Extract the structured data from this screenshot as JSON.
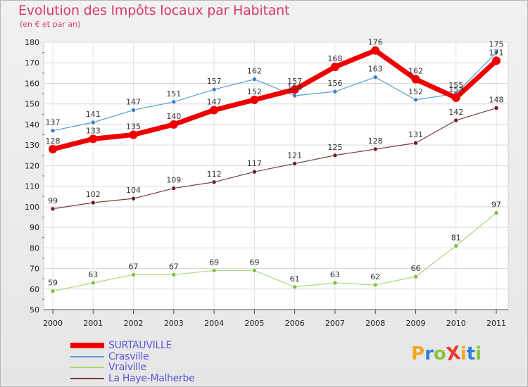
{
  "title": "Evolution des Impôts locaux par Habitant",
  "subtitle": "(en € et par an)",
  "logo": {
    "text": "ProXiti",
    "letters": [
      "P",
      "r",
      "o",
      "X",
      "i",
      "t",
      "i"
    ],
    "colors": [
      "#f5a623",
      "#2f7fd6",
      "#8ac43f",
      "#e43c2f",
      "#f5a623",
      "#2f7fd6",
      "#8ac43f"
    ]
  },
  "chart_data": {
    "type": "line",
    "title": "Evolution des Impôts locaux par Habitant",
    "subtitle": "(en € et par an)",
    "xlabel": "",
    "ylabel": "",
    "categories": [
      "2000",
      "2001",
      "2002",
      "2003",
      "2004",
      "2005",
      "2006",
      "2007",
      "2008",
      "2009",
      "2010",
      "2011"
    ],
    "ylim": [
      50,
      180
    ],
    "yticks": [
      "50",
      "60",
      "70",
      "80",
      "90",
      "100",
      "110",
      "120",
      "130",
      "140",
      "150",
      "160",
      "170",
      "180"
    ],
    "grid": true,
    "legend_position": "bottom-left",
    "series": [
      {
        "name": "SURTAUVILLE",
        "values": [
          128,
          133,
          135,
          140,
          147,
          152,
          157,
          168,
          176,
          162,
          153,
          171
        ],
        "labels": [
          "128",
          "133",
          "135",
          "140",
          "147",
          "152",
          "157",
          "168",
          "176",
          "162",
          "153",
          "171"
        ],
        "color": "#ee0000",
        "highlight": true
      },
      {
        "name": "Crasville",
        "values": [
          137,
          141,
          147,
          151,
          157,
          162,
          154,
          156,
          163,
          152,
          155,
          175
        ],
        "labels": [
          "137",
          "141",
          "147",
          "151",
          "157",
          "162",
          "154",
          "156",
          "163",
          "152",
          "155",
          "175"
        ],
        "color": "#5b9bd5",
        "point_color": "#3a7fc4",
        "highlight": false
      },
      {
        "name": "Vraiville",
        "values": [
          59,
          63,
          67,
          67,
          69,
          69,
          61,
          63,
          62,
          66,
          81,
          97
        ],
        "labels": [
          "59",
          "63",
          "67",
          "67",
          "69",
          "69",
          "61",
          "63",
          "62",
          "66",
          "81",
          "97"
        ],
        "color": "#a8d878",
        "point_color": "#7cc243",
        "highlight": false
      },
      {
        "name": "La Haye-Malherbe",
        "values": [
          99,
          102,
          104,
          109,
          112,
          117,
          121,
          125,
          128,
          131,
          142,
          148
        ],
        "labels": [
          "99",
          "102",
          "104",
          "109",
          "112",
          "117",
          "121",
          "125",
          "128",
          "131",
          "142",
          "148"
        ],
        "color": "#7a3b3b",
        "point_color": "#6b1f1f",
        "highlight": false
      }
    ]
  }
}
